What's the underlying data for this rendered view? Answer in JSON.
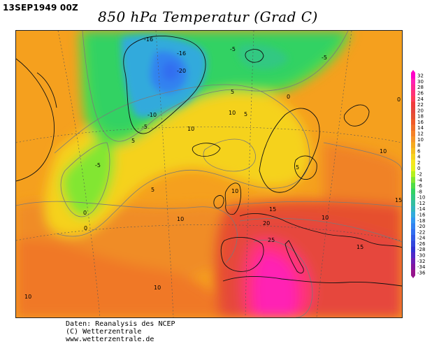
{
  "header": {
    "date": "13SEP1949 00Z",
    "title": "850 hPa Temperatur (Grad C)"
  },
  "credits": {
    "line1": "Daten: Reanalysis des NCEP",
    "line2": "(C) Wetterzentrale",
    "line3": "www.wetterzentrale.de"
  },
  "legend": {
    "labels": [
      "32",
      "30",
      "28",
      "26",
      "24",
      "22",
      "20",
      "18",
      "16",
      "14",
      "12",
      "10",
      "8",
      "6",
      "4",
      "2",
      "0",
      "-2",
      "-4",
      "-6",
      "-8",
      "-10",
      "-12",
      "-14",
      "-16",
      "-18",
      "-20",
      "-22",
      "-24",
      "-26",
      "-28",
      "-30",
      "-32",
      "-34",
      "-36"
    ],
    "colors": [
      "#ff00c8",
      "#ff20b4",
      "#ff2896",
      "#ff3278",
      "#ff3c5a",
      "#f03c3c",
      "#e6463c",
      "#e65032",
      "#f05a28",
      "#f06e28",
      "#f58228",
      "#f59628",
      "#f5aa1e",
      "#f5be1e",
      "#f5d21e",
      "#f5e61e",
      "#e6f01e",
      "#b4f01e",
      "#82e632",
      "#50dc46",
      "#32d264",
      "#32c882",
      "#32bea0",
      "#32b4be",
      "#32aadc",
      "#3296f0",
      "#3282f0",
      "#326ef0",
      "#325ae6",
      "#3246dc",
      "#3232d2",
      "#5028c8",
      "#6e1eb4",
      "#8214a0",
      "#96148c"
    ]
  },
  "contour_labels": [
    {
      "text": "-16"
    },
    {
      "text": "-16"
    },
    {
      "text": "-20"
    },
    {
      "text": "-10"
    },
    {
      "text": "-5"
    },
    {
      "text": "-5"
    },
    {
      "text": "-5"
    },
    {
      "text": "-5"
    },
    {
      "text": "0"
    },
    {
      "text": "0"
    },
    {
      "text": "0"
    },
    {
      "text": "0"
    },
    {
      "text": "5"
    },
    {
      "text": "5"
    },
    {
      "text": "5"
    },
    {
      "text": "5"
    },
    {
      "text": "5"
    },
    {
      "text": "10"
    },
    {
      "text": "10"
    },
    {
      "text": "10"
    },
    {
      "text": "10"
    },
    {
      "text": "10"
    },
    {
      "text": "10"
    },
    {
      "text": "10"
    },
    {
      "text": "10"
    },
    {
      "text": "15"
    },
    {
      "text": "15"
    },
    {
      "text": "15"
    },
    {
      "text": "20"
    },
    {
      "text": "25"
    }
  ]
}
